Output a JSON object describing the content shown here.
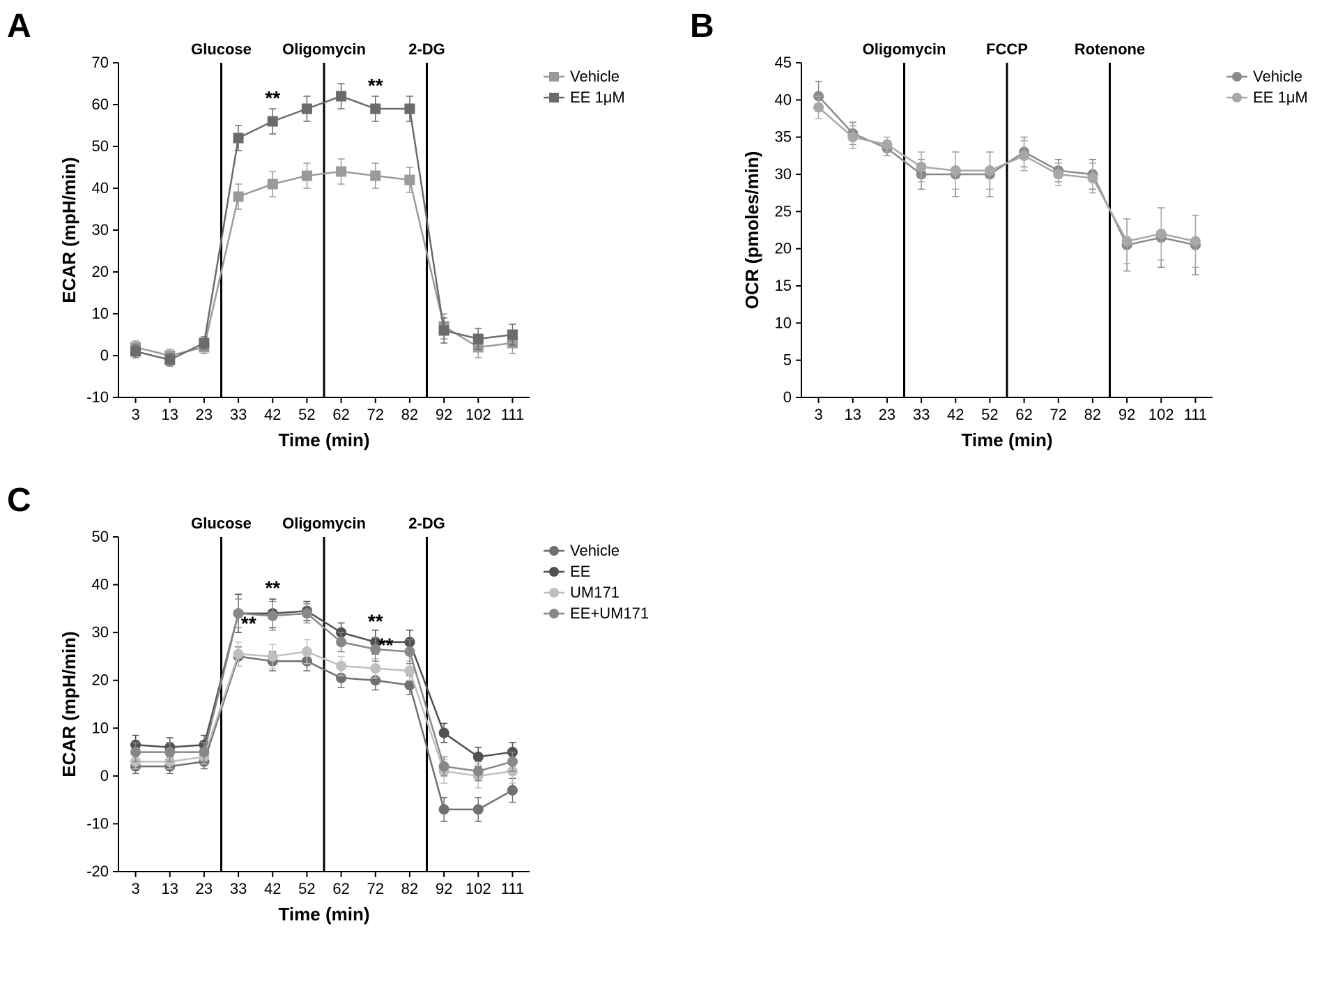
{
  "figure": {
    "background_color": "#ffffff",
    "axis_color": "#000000",
    "vline_color": "#000000",
    "tick_fontsize": 22,
    "label_fontsize": 26,
    "panel_label_fontsize": 48,
    "annotation_fontsize": 22,
    "legend_fontsize": 22,
    "marker_size": 7,
    "line_width": 2.5,
    "errorbar_width": 1.5,
    "errorbar_cap": 5,
    "xcats": [
      "3",
      "13",
      "23",
      "33",
      "42",
      "52",
      "62",
      "72",
      "82",
      "92",
      "102",
      "111"
    ]
  },
  "panelA": {
    "label": "A",
    "ylabel": "ECAR (mpH/min)",
    "xlabel": "Time (min)",
    "ylim": [
      -10,
      70
    ],
    "ytick_step": 10,
    "vlines_after_idx": [
      2,
      5,
      8
    ],
    "annotations": [
      {
        "text": "Glucose",
        "after_idx": 2
      },
      {
        "text": "Oligomycin",
        "after_idx": 5
      },
      {
        "text": "2-DG",
        "after_idx": 8
      }
    ],
    "sig_marks": [
      {
        "text": "**",
        "x_idx": 4,
        "y": 60
      },
      {
        "text": "**",
        "x_idx": 7,
        "y": 63
      }
    ],
    "series": [
      {
        "name": "Vehicle",
        "marker": "square",
        "color": "#9a9a9a",
        "y": [
          2,
          0,
          2,
          38,
          41,
          43,
          44,
          43,
          42,
          7,
          2,
          3
        ],
        "err": [
          1.5,
          1.5,
          1.5,
          3,
          3,
          3,
          3,
          3,
          3,
          3,
          2.5,
          2.5
        ]
      },
      {
        "name": "EE 1μM",
        "marker": "square",
        "color": "#6b6b6b",
        "y": [
          1,
          -1,
          3,
          52,
          56,
          59,
          62,
          59,
          59,
          6,
          4,
          5
        ],
        "err": [
          1.5,
          1.5,
          1.5,
          3,
          3,
          3,
          3,
          3,
          3,
          3,
          2.5,
          2.5
        ]
      }
    ]
  },
  "panelB": {
    "label": "B",
    "ylabel": "OCR (pmoles/min)",
    "xlabel": "Time (min)",
    "ylim": [
      0,
      45
    ],
    "ytick_step": 5,
    "vlines_after_idx": [
      2,
      5,
      8
    ],
    "annotations": [
      {
        "text": "Oligomycin",
        "after_idx": 2
      },
      {
        "text": "FCCP",
        "after_idx": 5
      },
      {
        "text": "Rotenone",
        "after_idx": 8
      }
    ],
    "sig_marks": [],
    "series": [
      {
        "name": "Vehicle",
        "marker": "circle",
        "color": "#8a8a8a",
        "y": [
          40.5,
          35.5,
          33.5,
          30,
          30,
          30,
          33,
          30.5,
          30,
          20.5,
          21.5,
          20.5
        ],
        "err": [
          2,
          1.5,
          1,
          2,
          3,
          3,
          2,
          1.5,
          2,
          3.5,
          4,
          4
        ]
      },
      {
        "name": "EE 1μM",
        "marker": "circle",
        "color": "#a8a8a8",
        "y": [
          39,
          35,
          34,
          31,
          30.5,
          30.5,
          32.5,
          30,
          29.5,
          21,
          22,
          21
        ],
        "err": [
          1.5,
          1.5,
          1,
          2,
          2.5,
          2.5,
          2,
          1.5,
          2,
          3,
          3.5,
          3.5
        ]
      }
    ]
  },
  "panelC": {
    "label": "C",
    "ylabel": "ECAR (mpH/min)",
    "xlabel": "Time (min)",
    "ylim": [
      -20,
      50
    ],
    "ytick_step": 10,
    "vlines_after_idx": [
      2,
      5,
      8
    ],
    "annotations": [
      {
        "text": "Glucose",
        "after_idx": 2
      },
      {
        "text": "Oligomycin",
        "after_idx": 5
      },
      {
        "text": "2-DG",
        "after_idx": 8
      }
    ],
    "sig_marks": [
      {
        "text": "**",
        "x_idx": 3.3,
        "y": 30.5
      },
      {
        "text": "**",
        "x_idx": 4,
        "y": 38
      },
      {
        "text": "**",
        "x_idx": 7,
        "y": 31
      },
      {
        "text": "**",
        "x_idx": 7.3,
        "y": 26
      }
    ],
    "series": [
      {
        "name": "Vehicle",
        "marker": "circle",
        "color": "#707070",
        "y": [
          2,
          2,
          3,
          25,
          24,
          24,
          20.5,
          20,
          19,
          -7,
          -7,
          -3
        ],
        "err": [
          1.5,
          1.5,
          1.5,
          2,
          2,
          2,
          2,
          2,
          2,
          2.5,
          2.5,
          2.5
        ]
      },
      {
        "name": "EE",
        "marker": "circle",
        "color": "#505050",
        "y": [
          6.5,
          6,
          6.5,
          34,
          34,
          34.5,
          30,
          28,
          28,
          9,
          4,
          5
        ],
        "err": [
          2,
          2,
          2,
          4,
          3,
          2,
          2,
          2.5,
          2.5,
          2,
          2,
          2
        ]
      },
      {
        "name": "UM171",
        "marker": "circle",
        "color": "#bfbfbf",
        "y": [
          3,
          3,
          4,
          25.5,
          25,
          26,
          23,
          22.5,
          22,
          1,
          0,
          1
        ],
        "err": [
          1.5,
          1.5,
          1.5,
          2.5,
          2.5,
          2.5,
          2,
          2,
          2,
          2.5,
          2.5,
          2.5
        ]
      },
      {
        "name": "EE+UM171",
        "marker": "circle",
        "color": "#888888",
        "y": [
          5,
          5,
          5,
          34,
          33.5,
          34,
          28,
          26.5,
          26,
          2,
          1,
          3
        ],
        "err": [
          2,
          2,
          2,
          3,
          3,
          2,
          2,
          2.5,
          2.5,
          2,
          2,
          2
        ]
      }
    ]
  }
}
